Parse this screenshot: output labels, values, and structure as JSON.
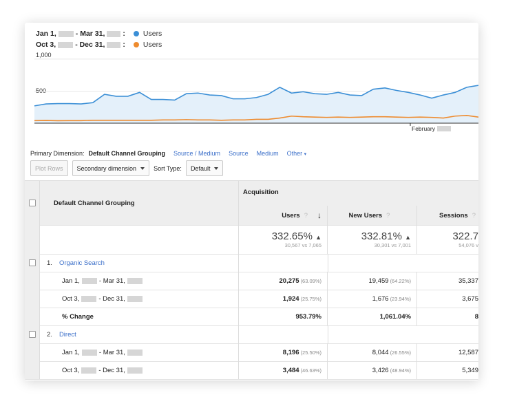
{
  "legend": [
    {
      "from": "Jan 1,",
      "to": "- Mar 31,",
      "suffix": ":",
      "series": "Users",
      "color": "#3b8fd6"
    },
    {
      "from": "Oct 3,",
      "to": "- Dec 31,",
      "suffix": ":",
      "series": "Users",
      "color": "#ee8b2e"
    }
  ],
  "chart_data": {
    "type": "line",
    "y_ticks": [
      "1,000",
      "500"
    ],
    "x_tick": "February",
    "ylim": [
      0,
      1100
    ],
    "series": [
      {
        "name": "Users",
        "color": "#3b8fd6",
        "values": [
          270,
          300,
          305,
          305,
          300,
          320,
          450,
          420,
          420,
          480,
          370,
          370,
          360,
          460,
          470,
          440,
          430,
          380,
          380,
          400,
          450,
          560,
          470,
          490,
          460,
          450,
          480,
          440,
          430,
          530,
          550,
          510,
          480,
          440,
          390,
          440,
          480,
          560,
          590
        ]
      },
      {
        "name": "Users",
        "color": "#ee8b2e",
        "values": [
          40,
          42,
          38,
          40,
          40,
          45,
          45,
          45,
          45,
          45,
          45,
          50,
          50,
          55,
          50,
          50,
          45,
          50,
          50,
          60,
          60,
          80,
          110,
          100,
          95,
          90,
          95,
          90,
          95,
          100,
          100,
          95,
          90,
          95,
          90,
          80,
          110,
          120,
          95
        ]
      }
    ]
  },
  "primary_dimension": {
    "label": "Primary Dimension:",
    "active": "Default Channel Grouping",
    "links": [
      "Source / Medium",
      "Source",
      "Medium",
      "Other"
    ]
  },
  "toolbar": {
    "plot_rows": "Plot Rows",
    "secondary": "Secondary dimension",
    "sort_label": "Sort Type:",
    "sort_value": "Default"
  },
  "table": {
    "dim_header": "Default Channel Grouping",
    "group_header": "Acquisition",
    "columns": [
      "Users",
      "New Users",
      "Sessions"
    ],
    "totals": [
      {
        "value": "332.65%",
        "sub": "30,567 vs 7,065"
      },
      {
        "value": "332.81%",
        "sub": "30,301 vs 7,001"
      },
      {
        "value": "322.7",
        "sub": "54,076 v"
      }
    ],
    "groups": [
      {
        "index": "1.",
        "name": "Organic Search",
        "rows": [
          {
            "label_a": "Jan 1,",
            "label_b": "- Mar 31,",
            "v1": "20,275",
            "p1": "(63.09%)",
            "v2": "19,459",
            "p2": "(64.22%)",
            "v3": "35,337"
          },
          {
            "label_a": "Oct 3,",
            "label_b": "- Dec 31,",
            "v1": "1,924",
            "p1": "(25.75%)",
            "v2": "1,676",
            "p2": "(23.94%)",
            "v3": "3,675"
          }
        ],
        "change": {
          "label": "% Change",
          "v1": "953.79%",
          "v2": "1,061.04%",
          "v3": "8"
        }
      },
      {
        "index": "2.",
        "name": "Direct",
        "rows": [
          {
            "label_a": "Jan 1,",
            "label_b": "- Mar 31,",
            "v1": "8,196",
            "p1": "(25.50%)",
            "v2": "8,044",
            "p2": "(26.55%)",
            "v3": "12,587"
          },
          {
            "label_a": "Oct 3,",
            "label_b": "- Dec 31,",
            "v1": "3,484",
            "p1": "(46.63%)",
            "v2": "3,426",
            "p2": "(48.94%)",
            "v3": "5,349"
          }
        ]
      }
    ]
  }
}
